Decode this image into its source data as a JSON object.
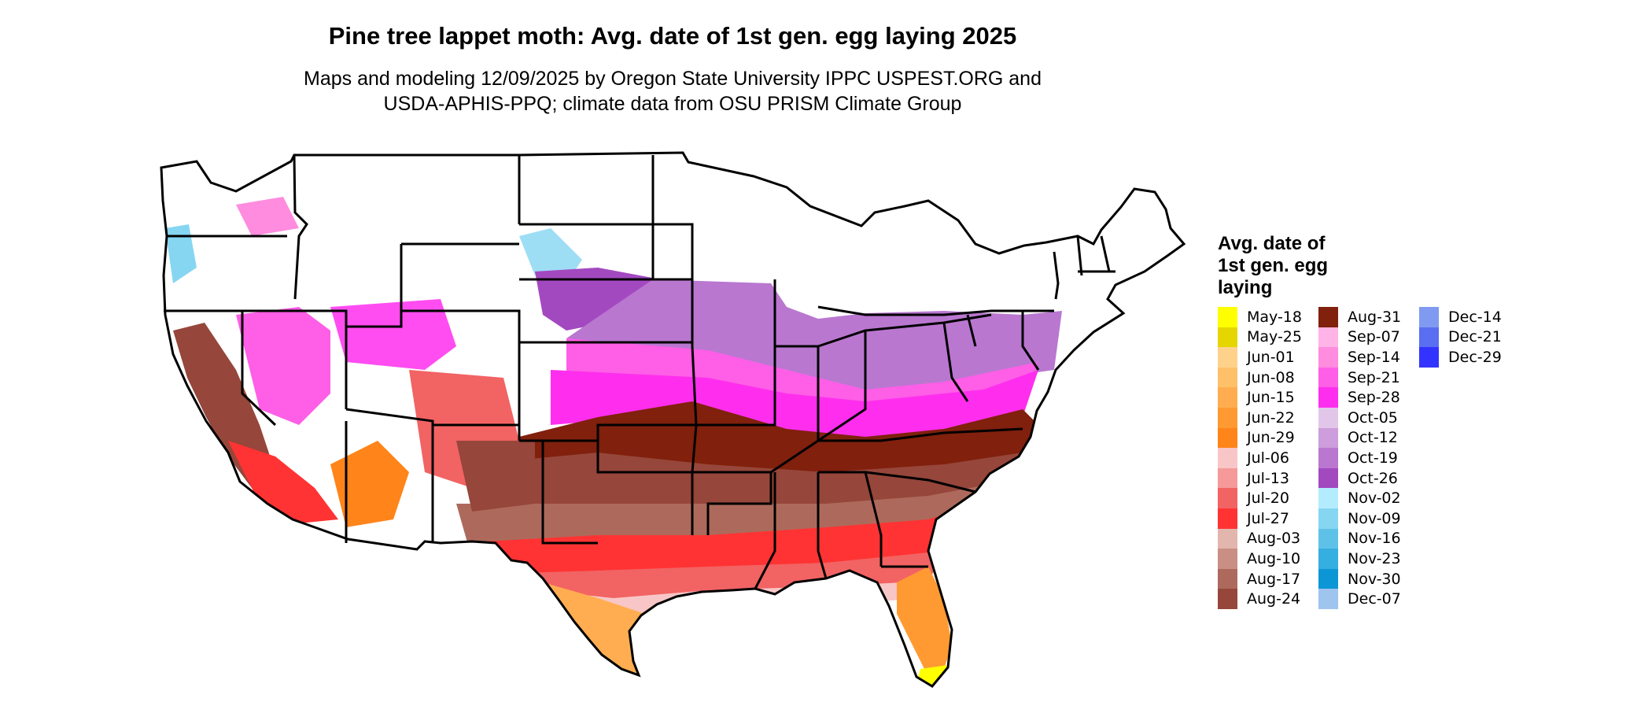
{
  "header": {
    "title": "Pine tree lappet moth: Avg. date of 1st gen. egg laying 2025",
    "subtitle_line1": "Maps and modeling 12/09/2025 by Oregon State University IPPC USPEST.ORG and",
    "subtitle_line2": "USDA-APHIS-PPQ; climate data from OSU PRISM Climate Group"
  },
  "legend": {
    "title_lines": [
      "Avg. date of",
      "1st gen. egg",
      "laying"
    ],
    "columns": [
      [
        {
          "label": "May-18",
          "color": "#ffff00"
        },
        {
          "label": "May-25",
          "color": "#e5d600"
        },
        {
          "label": "Jun-01",
          "color": "#ffd28c"
        },
        {
          "label": "Jun-08",
          "color": "#ffc06a"
        },
        {
          "label": "Jun-15",
          "color": "#ffad50"
        },
        {
          "label": "Jun-22",
          "color": "#ff9a33"
        },
        {
          "label": "Jun-29",
          "color": "#ff8419"
        },
        {
          "label": "Jul-06",
          "color": "#f8c6c6"
        },
        {
          "label": "Jul-13",
          "color": "#f59999"
        },
        {
          "label": "Jul-20",
          "color": "#f26363"
        },
        {
          "label": "Jul-27",
          "color": "#ff3333"
        },
        {
          "label": "Aug-03",
          "color": "#e3b6ad"
        },
        {
          "label": "Aug-10",
          "color": "#c98f84"
        },
        {
          "label": "Aug-17",
          "color": "#ad6a5c"
        },
        {
          "label": "Aug-24",
          "color": "#96463a"
        }
      ],
      [
        {
          "label": "Aug-31",
          "color": "#80200d"
        },
        {
          "label": "Sep-07",
          "color": "#ffb3e6"
        },
        {
          "label": "Sep-14",
          "color": "#ff8cde"
        },
        {
          "label": "Sep-21",
          "color": "#ff5ee6"
        },
        {
          "label": "Sep-28",
          "color": "#ff2eee"
        },
        {
          "label": "Oct-05",
          "color": "#e2c6ea"
        },
        {
          "label": "Oct-12",
          "color": "#cd9ddc"
        },
        {
          "label": "Oct-19",
          "color": "#b977d0"
        },
        {
          "label": "Oct-26",
          "color": "#a349c0"
        },
        {
          "label": "Nov-02",
          "color": "#b3ecff"
        },
        {
          "label": "Nov-09",
          "color": "#86d6f2"
        },
        {
          "label": "Nov-16",
          "color": "#5ec2e8"
        },
        {
          "label": "Nov-23",
          "color": "#35aee0"
        },
        {
          "label": "Nov-30",
          "color": "#0d96d6"
        },
        {
          "label": "Dec-07",
          "color": "#9fc4ee"
        }
      ],
      [
        {
          "label": "Dec-14",
          "color": "#7f9af0"
        },
        {
          "label": "Dec-21",
          "color": "#5a6ef2"
        },
        {
          "label": "Dec-29",
          "color": "#3333ff"
        }
      ]
    ]
  }
}
